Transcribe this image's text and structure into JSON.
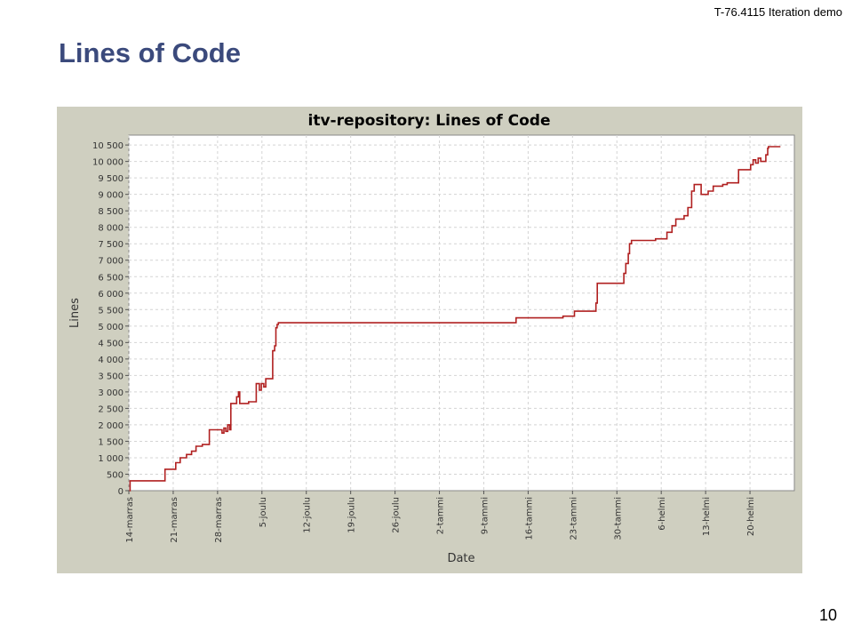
{
  "slide": {
    "header_note": "T-76.4115 Iteration demo",
    "title": "Lines of Code",
    "page_number": "10"
  },
  "chart_data": {
    "type": "line",
    "title": "itv-repository: Lines of Code",
    "xlabel": "Date",
    "ylabel": "Lines",
    "xlim": [
      0,
      105
    ],
    "ylim": [
      0,
      10800
    ],
    "grid": true,
    "x_tick_labels": [
      {
        "x": 0,
        "label": "14-marras"
      },
      {
        "x": 7,
        "label": "21-marras"
      },
      {
        "x": 14,
        "label": "28-marras"
      },
      {
        "x": 21,
        "label": "5-joulu"
      },
      {
        "x": 28,
        "label": "12-joulu"
      },
      {
        "x": 35,
        "label": "19-joulu"
      },
      {
        "x": 42,
        "label": "26-joulu"
      },
      {
        "x": 49,
        "label": "2-tammi"
      },
      {
        "x": 56,
        "label": "9-tammi"
      },
      {
        "x": 63,
        "label": "16-tammi"
      },
      {
        "x": 70,
        "label": "23-tammi"
      },
      {
        "x": 77,
        "label": "30-tammi"
      },
      {
        "x": 84,
        "label": "6-helmi"
      },
      {
        "x": 91,
        "label": "13-helmi"
      },
      {
        "x": 98,
        "label": "20-helmi"
      }
    ],
    "y_ticks": [
      {
        "value": 0,
        "label": "0"
      },
      {
        "value": 500,
        "label": "500"
      },
      {
        "value": 1000,
        "label": "1 000"
      },
      {
        "value": 1500,
        "label": "1 500"
      },
      {
        "value": 2000,
        "label": "2 000"
      },
      {
        "value": 2500,
        "label": "2 500"
      },
      {
        "value": 3000,
        "label": "3 000"
      },
      {
        "value": 3500,
        "label": "3 500"
      },
      {
        "value": 4000,
        "label": "4 000"
      },
      {
        "value": 4500,
        "label": "4 500"
      },
      {
        "value": 5000,
        "label": "5 000"
      },
      {
        "value": 5500,
        "label": "5 500"
      },
      {
        "value": 6000,
        "label": "6 000"
      },
      {
        "value": 6500,
        "label": "6 500"
      },
      {
        "value": 7000,
        "label": "7 000"
      },
      {
        "value": 7500,
        "label": "7 500"
      },
      {
        "value": 8000,
        "label": "8 000"
      },
      {
        "value": 8500,
        "label": "8 500"
      },
      {
        "value": 9000,
        "label": "9 000"
      },
      {
        "value": 9500,
        "label": "9 500"
      },
      {
        "value": 10000,
        "label": "10 000"
      },
      {
        "value": 10500,
        "label": "10 500"
      }
    ],
    "series": [
      {
        "color": "#b02020",
        "step": true,
        "points": [
          [
            0.1,
            0
          ],
          [
            0.2,
            300
          ],
          [
            5.6,
            300
          ],
          [
            5.7,
            650
          ],
          [
            7.3,
            650
          ],
          [
            7.4,
            850
          ],
          [
            8.0,
            850
          ],
          [
            8.1,
            1000
          ],
          [
            9.0,
            1000
          ],
          [
            9.1,
            1100
          ],
          [
            9.8,
            1100
          ],
          [
            9.9,
            1200
          ],
          [
            10.5,
            1200
          ],
          [
            10.6,
            1350
          ],
          [
            11.5,
            1350
          ],
          [
            11.6,
            1400
          ],
          [
            12.6,
            1400
          ],
          [
            12.7,
            1850
          ],
          [
            14.6,
            1850
          ],
          [
            14.7,
            1750
          ],
          [
            15.0,
            1900
          ],
          [
            15.3,
            1800
          ],
          [
            15.6,
            2000
          ],
          [
            15.9,
            1850
          ],
          [
            16.1,
            2650
          ],
          [
            16.9,
            2650
          ],
          [
            17.0,
            2850
          ],
          [
            17.3,
            3000
          ],
          [
            17.5,
            2650
          ],
          [
            18.8,
            2650
          ],
          [
            18.9,
            2700
          ],
          [
            20.0,
            2700
          ],
          [
            20.1,
            3250
          ],
          [
            20.6,
            3050
          ],
          [
            20.9,
            3250
          ],
          [
            21.3,
            3150
          ],
          [
            21.6,
            3400
          ],
          [
            22.6,
            3400
          ],
          [
            22.7,
            4250
          ],
          [
            23.0,
            4400
          ],
          [
            23.2,
            4950
          ],
          [
            23.4,
            5050
          ],
          [
            23.6,
            5100
          ],
          [
            61.0,
            5100
          ],
          [
            61.1,
            5250
          ],
          [
            68.4,
            5250
          ],
          [
            68.5,
            5300
          ],
          [
            70.2,
            5300
          ],
          [
            70.3,
            5450
          ],
          [
            73.6,
            5450
          ],
          [
            73.7,
            5700
          ],
          [
            73.9,
            6300
          ],
          [
            78.0,
            6300
          ],
          [
            78.1,
            6600
          ],
          [
            78.4,
            6900
          ],
          [
            78.8,
            7200
          ],
          [
            79.0,
            7500
          ],
          [
            79.3,
            7600
          ],
          [
            83.0,
            7600
          ],
          [
            83.1,
            7650
          ],
          [
            84.8,
            7650
          ],
          [
            84.9,
            7850
          ],
          [
            85.6,
            7850
          ],
          [
            85.7,
            8050
          ],
          [
            86.2,
            8050
          ],
          [
            86.3,
            8250
          ],
          [
            87.5,
            8250
          ],
          [
            87.6,
            8350
          ],
          [
            88.1,
            8350
          ],
          [
            88.2,
            8600
          ],
          [
            88.7,
            8600
          ],
          [
            88.8,
            9100
          ],
          [
            89.2,
            9300
          ],
          [
            90.2,
            9300
          ],
          [
            90.3,
            9000
          ],
          [
            91.3,
            9000
          ],
          [
            91.4,
            9100
          ],
          [
            92.1,
            9100
          ],
          [
            92.2,
            9250
          ],
          [
            93.6,
            9250
          ],
          [
            93.7,
            9300
          ],
          [
            94.3,
            9300
          ],
          [
            94.4,
            9350
          ],
          [
            96.1,
            9350
          ],
          [
            96.2,
            9750
          ],
          [
            98.0,
            9750
          ],
          [
            98.1,
            9900
          ],
          [
            98.5,
            10050
          ],
          [
            98.9,
            9950
          ],
          [
            99.3,
            10100
          ],
          [
            99.7,
            10000
          ],
          [
            100.4,
            10000
          ],
          [
            100.5,
            10200
          ],
          [
            100.8,
            10400
          ],
          [
            100.9,
            10450
          ],
          [
            102.8,
            10450
          ]
        ]
      }
    ]
  }
}
